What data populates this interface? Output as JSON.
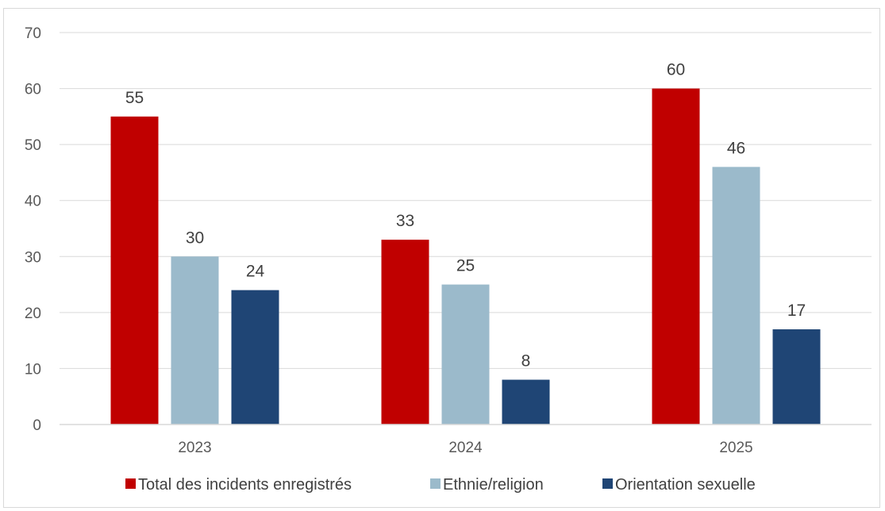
{
  "chart_data": {
    "type": "bar",
    "title": "",
    "xlabel": "",
    "ylabel": "",
    "categories": [
      "2023",
      "2024",
      "2025"
    ],
    "ylim": [
      0,
      70
    ],
    "yticks": [
      0,
      10,
      20,
      30,
      40,
      50,
      60,
      70
    ],
    "grid": true,
    "legend_position": "bottom",
    "series": [
      {
        "name": "Total des incidents enregistrés",
        "color": "#c00000",
        "values": [
          55,
          33,
          60
        ]
      },
      {
        "name": "Ethnie/religion",
        "color": "#9bbacb",
        "values": [
          30,
          25,
          46
        ]
      },
      {
        "name": "Orientation sexuelle",
        "color": "#1f4575",
        "values": [
          24,
          8,
          17
        ]
      }
    ]
  }
}
